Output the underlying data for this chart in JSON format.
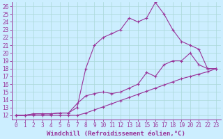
{
  "xlabel": "Windchill (Refroidissement éolien,°C)",
  "bg_color": "#cceeff",
  "line_color": "#993399",
  "xlim": [
    -0.5,
    23.5
  ],
  "ylim": [
    11.5,
    26.5
  ],
  "xticks": [
    0,
    1,
    2,
    3,
    4,
    5,
    6,
    7,
    8,
    9,
    10,
    11,
    12,
    13,
    14,
    15,
    16,
    17,
    18,
    19,
    20,
    21,
    22,
    23
  ],
  "yticks": [
    12,
    13,
    14,
    15,
    16,
    17,
    18,
    19,
    20,
    21,
    22,
    23,
    24,
    25,
    26
  ],
  "line1_x": [
    0,
    1,
    2,
    3,
    4,
    5,
    6,
    7,
    8,
    9,
    10,
    11,
    12,
    13,
    14,
    15,
    16,
    17,
    18,
    19,
    20,
    21,
    22,
    23
  ],
  "line1_y": [
    12.0,
    12.0,
    12.0,
    12.0,
    12.0,
    12.0,
    12.0,
    12.0,
    12.3,
    12.7,
    13.1,
    13.5,
    13.9,
    14.3,
    14.7,
    15.1,
    15.5,
    15.9,
    16.3,
    16.7,
    17.0,
    17.3,
    17.6,
    18.0
  ],
  "line2_x": [
    0,
    1,
    2,
    3,
    4,
    5,
    6,
    7,
    8,
    9,
    10,
    11,
    12,
    13,
    14,
    15,
    16,
    17,
    18,
    19,
    20,
    21,
    22,
    23
  ],
  "line2_y": [
    12.0,
    12.0,
    12.2,
    12.2,
    12.2,
    12.3,
    12.3,
    13.5,
    14.5,
    14.8,
    15.0,
    14.8,
    15.0,
    15.5,
    16.0,
    17.5,
    17.0,
    18.5,
    19.0,
    19.0,
    20.0,
    18.5,
    18.0,
    18.0
  ],
  "line3_x": [
    0,
    1,
    2,
    3,
    4,
    5,
    6,
    7,
    8,
    9,
    10,
    11,
    12,
    13,
    14,
    15,
    16,
    17,
    18,
    19,
    20,
    21,
    22,
    23
  ],
  "line3_y": [
    12.0,
    12.0,
    12.2,
    12.2,
    12.2,
    12.3,
    12.3,
    13.0,
    18.0,
    21.0,
    22.0,
    22.5,
    23.0,
    24.5,
    24.0,
    24.5,
    26.5,
    25.0,
    23.0,
    21.5,
    21.0,
    20.5,
    18.0,
    18.0
  ],
  "grid_color": "#aad8d8",
  "tick_fontsize": 5.5,
  "label_fontsize": 6.5,
  "marker": "+",
  "marker_size": 3,
  "lw": 0.8
}
